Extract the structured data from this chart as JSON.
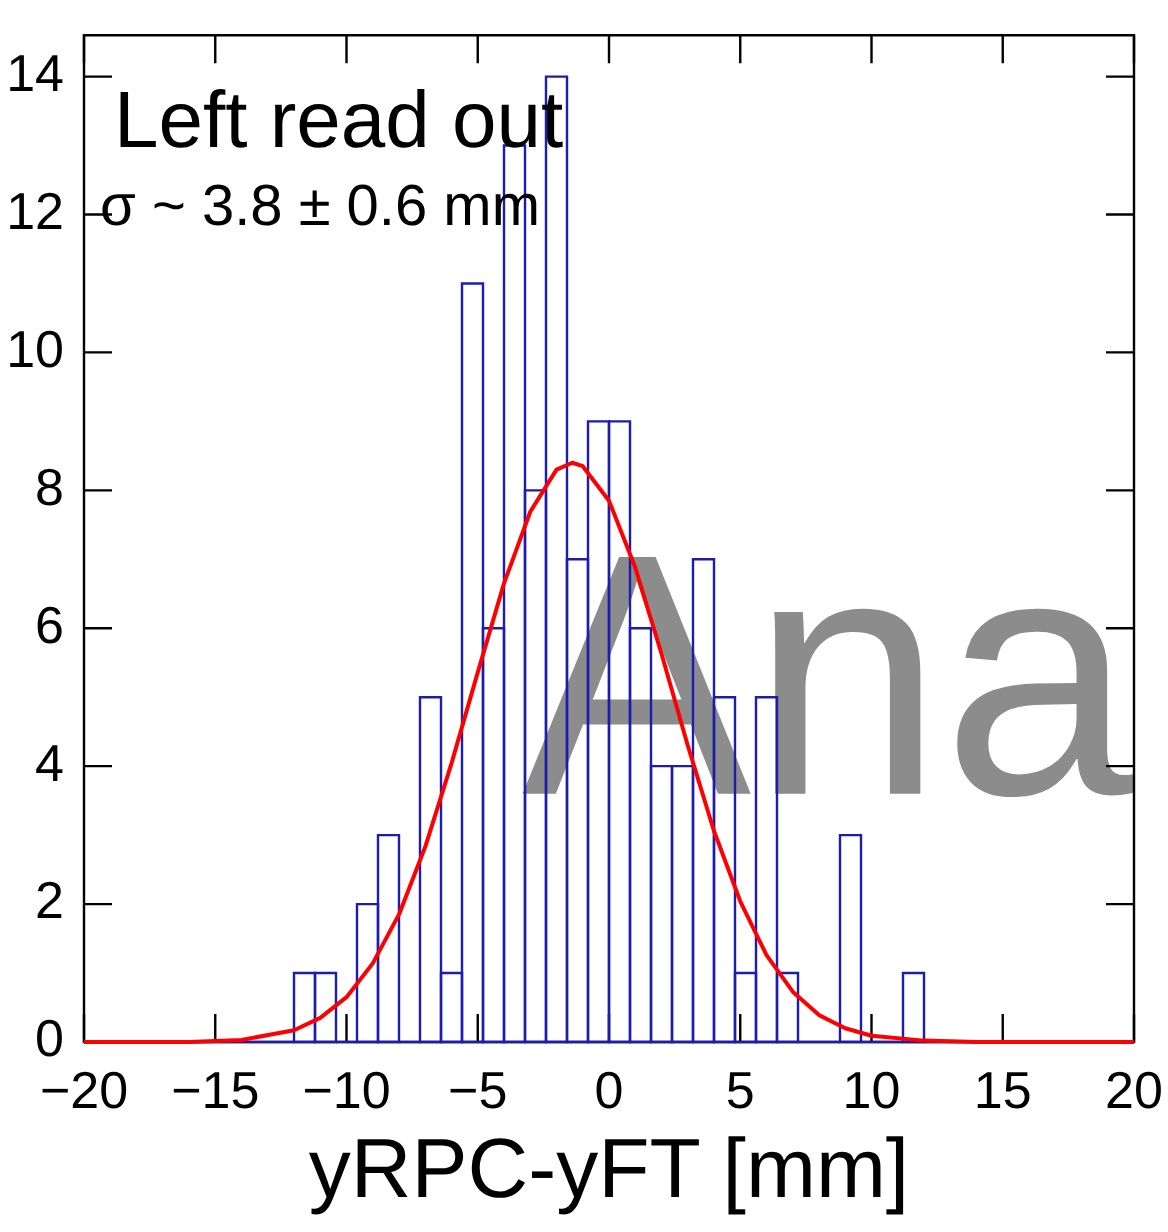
{
  "chart_data": {
    "type": "histogram",
    "xlabel": "yRPC-yFT [mm]",
    "annotations": [
      "Left read out",
      "σ ~ 3.8 ± 0.6 mm",
      "Ana"
    ],
    "bins": [
      -20,
      -19.2,
      -18.4,
      -17.6,
      -16.8,
      -16,
      -15.2,
      -14.4,
      -13.6,
      -12.8,
      -12,
      -11.2,
      -10.4,
      -9.6,
      -8.8,
      -8,
      -7.2,
      -6.4,
      -5.6,
      -4.8,
      -4,
      -3.2,
      -2.4,
      -1.6,
      -0.8,
      0,
      0.8,
      1.6,
      2.4,
      3.2,
      4,
      4.8,
      5.6,
      6.4,
      7.2,
      8,
      8.8,
      9.6,
      10.4,
      11.2,
      12,
      12.8,
      13.6,
      14.4,
      15.2,
      16,
      16.8,
      17.6,
      18.4,
      19.2,
      20
    ],
    "values": [
      0,
      0,
      0,
      0,
      0,
      0,
      0,
      0,
      0,
      0,
      1,
      1,
      0,
      2,
      3,
      0,
      5,
      1,
      11,
      6,
      13,
      8,
      14,
      7,
      9,
      9,
      6,
      4,
      4,
      7,
      5,
      1,
      5,
      1,
      0,
      0,
      3,
      0,
      0,
      1,
      0,
      0,
      0,
      0,
      0,
      0,
      0,
      0,
      0,
      0
    ],
    "color": "#1c1cb0",
    "series": [
      {
        "type": "line",
        "color": "#ff0000",
        "marker": "none",
        "x": [
          -20,
          -16,
          -14,
          -12,
          -11,
          -10,
          -9,
          -8,
          -7,
          -6,
          -5,
          -4,
          -3,
          -2,
          -1.4,
          -1,
          0,
          1,
          2,
          3,
          4,
          5,
          6,
          7,
          8,
          9,
          10,
          12,
          14,
          16,
          20
        ],
        "values": [
          0,
          0,
          0.03,
          0.17,
          0.35,
          0.65,
          1.14,
          1.85,
          2.83,
          4.04,
          5.36,
          6.65,
          7.69,
          8.3,
          8.4,
          8.35,
          7.85,
          6.88,
          5.63,
          4.3,
          3.06,
          2.04,
          1.26,
          0.73,
          0.39,
          0.2,
          0.09,
          0.02,
          0,
          0,
          0
        ]
      }
    ],
    "xlim": [
      -20,
      20
    ],
    "ylim": [
      0,
      14.6
    ],
    "xticks": [
      {
        "value": -20,
        "label": "−20"
      },
      {
        "value": -15,
        "label": "−15"
      },
      {
        "value": -10,
        "label": "−10"
      },
      {
        "value": -5,
        "label": "−5"
      },
      0,
      5,
      10,
      15,
      20
    ],
    "yticks": [
      0,
      2,
      4,
      6,
      8,
      10,
      12,
      14
    ],
    "grid": false,
    "legend": false
  }
}
